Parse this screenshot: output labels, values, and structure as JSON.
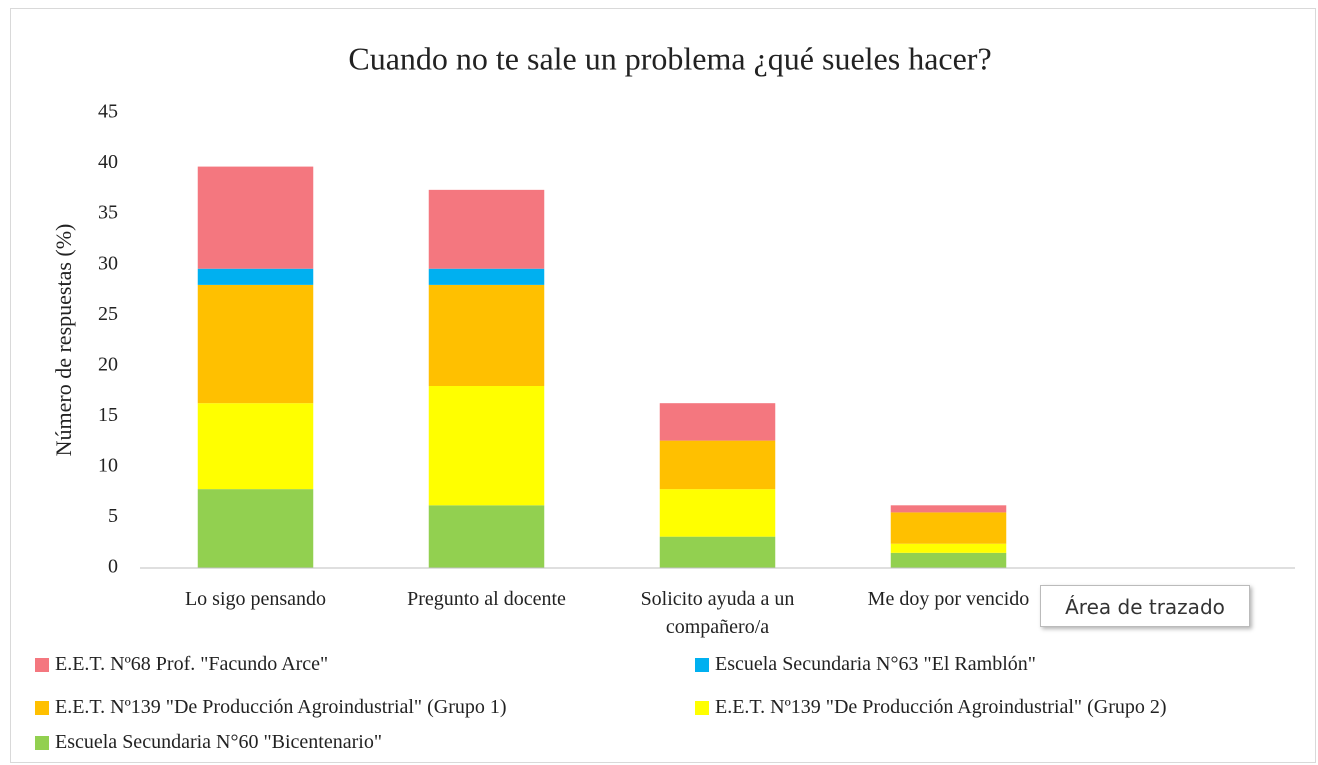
{
  "chart_data": {
    "type": "stacked_bar",
    "title": "Cuando no te sale un problema ¿qué sueles hacer?",
    "ylabel": "Número de respuestas (%)",
    "categories": [
      "Lo sigo pensando",
      "Pregunto al docente",
      "Solicito ayuda a un compañero/a",
      "Me doy por vencido",
      null
    ],
    "series": [
      {
        "name": "E.E.T. Nº68 Prof. \"Facundo Arce\"",
        "color": "#f4777f",
        "values": [
          10.1,
          7.8,
          3.7,
          0.7,
          null
        ]
      },
      {
        "name": "Escuela Secundaria N°63 \"El Ramblón\"",
        "color": "#00b0f0",
        "values": [
          1.6,
          1.6,
          0,
          0,
          null
        ]
      },
      {
        "name": "E.E.T. Nº139 \"De Producción Agroindustrial\" (Grupo 1)",
        "color": "#ffc000",
        "values": [
          11.7,
          10.0,
          4.8,
          3.1,
          null
        ]
      },
      {
        "name": "E.E.T. Nº139 \"De Producción Agroindustrial\" (Grupo 2)",
        "color": "#ffff00",
        "values": [
          8.5,
          11.8,
          4.7,
          0.9,
          null
        ]
      },
      {
        "name": "Escuela Secundaria N°60 \"Bicentenario\"",
        "color": "#92d050",
        "values": [
          7.8,
          6.2,
          3.1,
          1.5,
          null
        ]
      }
    ],
    "ylim": [
      0,
      45
    ],
    "yticks": [
      0,
      5,
      10,
      15,
      20,
      25,
      30,
      35,
      40,
      45
    ],
    "grid": false,
    "legend": "bottom"
  },
  "tooltip": "Área de trazado"
}
